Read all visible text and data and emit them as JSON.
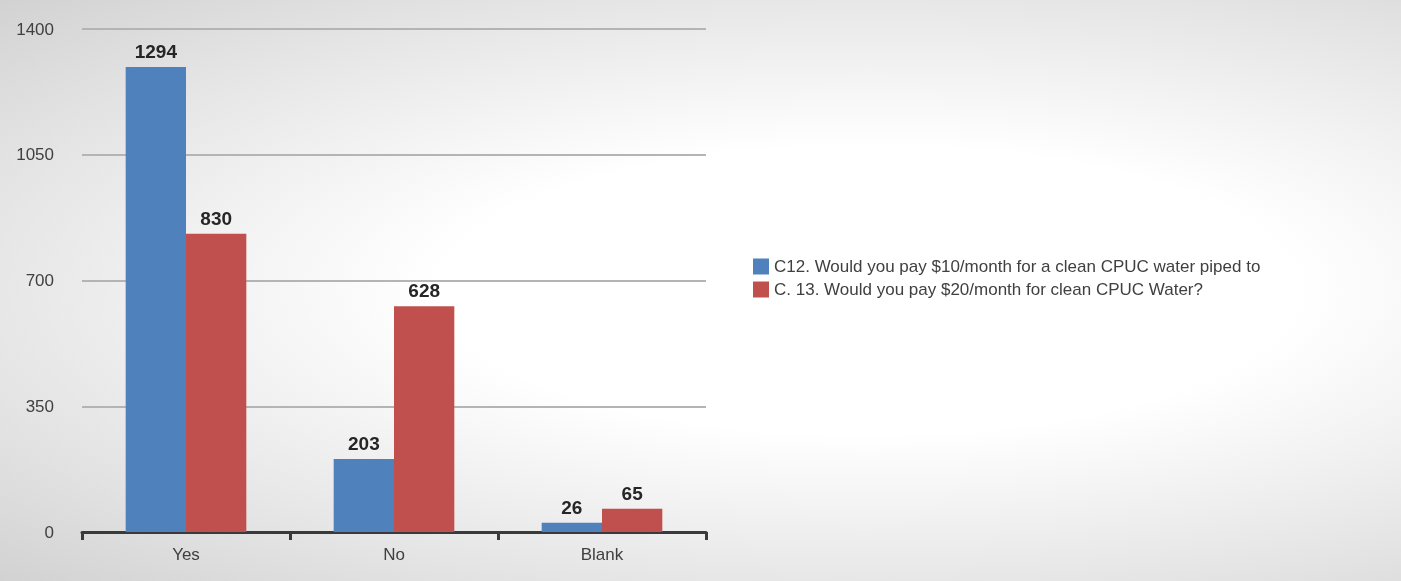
{
  "chart_data": {
    "type": "bar",
    "categories": [
      "Yes",
      "No",
      "Blank"
    ],
    "series": [
      {
        "name": "C12. Would you pay $10/month for a clean CPUC water piped to",
        "color": "#4f81bd",
        "values": [
          1294,
          203,
          26
        ]
      },
      {
        "name": "C. 13. Would you pay $20/month for clean CPUC Water?",
        "color": "#c0504d",
        "values": [
          830,
          628,
          65
        ]
      }
    ],
    "ylim": [
      0,
      1400
    ],
    "yticks": [
      0,
      350,
      700,
      1050,
      1400
    ],
    "grid": "y",
    "legend": "right",
    "data_labels": true
  }
}
